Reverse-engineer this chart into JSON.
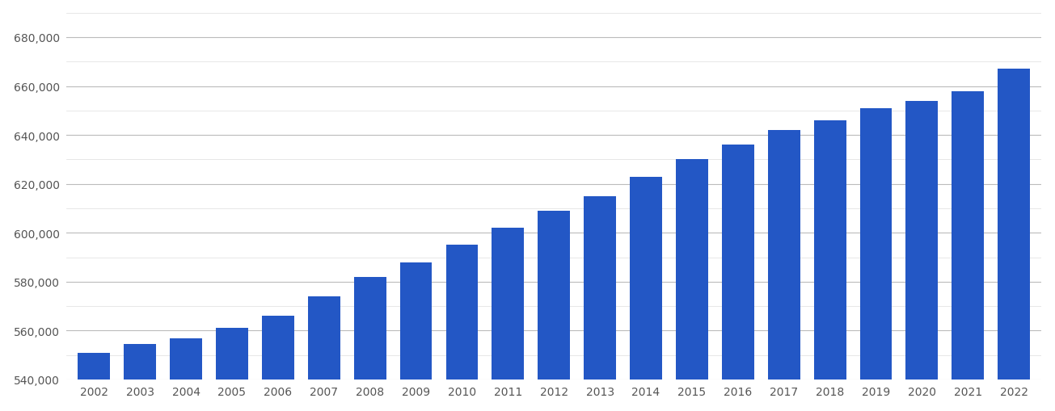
{
  "years": [
    2002,
    2003,
    2004,
    2005,
    2006,
    2007,
    2008,
    2009,
    2010,
    2011,
    2012,
    2013,
    2014,
    2015,
    2016,
    2017,
    2018,
    2019,
    2020,
    2021,
    2022
  ],
  "values": [
    551000,
    554500,
    557000,
    561000,
    566000,
    574000,
    582000,
    588000,
    595000,
    602000,
    609000,
    615000,
    623000,
    630000,
    636000,
    642000,
    646000,
    651000,
    654000,
    658000,
    667000
  ],
  "bar_color": "#2357c5",
  "background_color": "#ffffff",
  "major_grid_color": "#bbbbbb",
  "minor_grid_color": "#dddddd",
  "ylim": [
    540000,
    690000
  ],
  "ytick_major": [
    540000,
    560000,
    580000,
    600000,
    620000,
    640000,
    660000,
    680000
  ],
  "ytick_minor_step": 10000,
  "tick_label_color": "#555555",
  "bar_width": 0.7,
  "tick_fontsize": 10
}
